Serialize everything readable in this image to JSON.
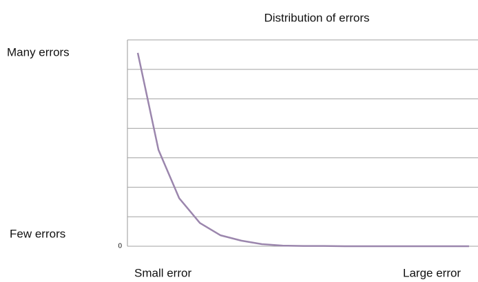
{
  "chart_data": {
    "type": "line",
    "title": "Distribution of errors",
    "y_top_label": "Many errors",
    "y_bottom_label": "Few errors",
    "x_left_label": "Small error",
    "x_right_label": "Large error",
    "x": [
      1,
      2,
      3,
      4,
      5,
      6,
      7,
      8,
      9,
      10,
      11,
      12,
      13,
      14,
      15,
      16,
      17
    ],
    "series": [
      {
        "name": null,
        "color": "#9b86ad",
        "values": [
          6.56,
          3.27,
          1.63,
          0.79,
          0.37,
          0.19,
          0.07,
          0.02,
          0.01,
          0.01,
          0,
          0,
          0,
          0,
          0,
          0,
          0
        ]
      }
    ],
    "xlim": [
      0.5,
      17.5
    ],
    "ylim": [
      0,
      7
    ],
    "yticks": [
      0,
      {
        "value": 1,
        "label": null
      },
      {
        "value": 2,
        "label": null
      },
      {
        "value": 3,
        "label": null
      },
      {
        "value": 4,
        "label": null
      },
      {
        "value": 5,
        "label": null
      },
      {
        "value": 6,
        "label": null
      },
      {
        "value": 7,
        "label": null
      }
    ],
    "grid": true
  }
}
